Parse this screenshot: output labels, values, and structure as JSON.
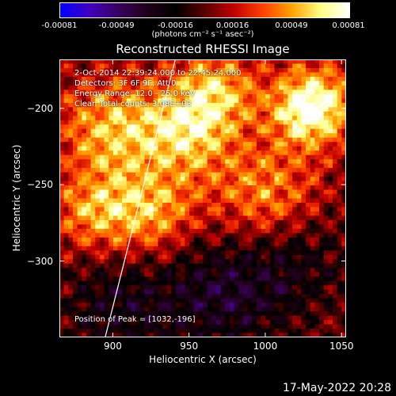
{
  "colorbar": {
    "ticks": [
      "-0.00081",
      "-0.00049",
      "-0.00016",
      "0.00016",
      "0.00049",
      "0.00081"
    ],
    "units": "(photons cm⁻² s⁻¹ asec⁻²)"
  },
  "annotations": {
    "time_range": "2-Oct-2014 22:39:24.000 to 22:45:24.000",
    "detectors": "Detectors: 3F 6F 9F, Att 0",
    "energy": "Energy Range: 12.0 - 25.0 keV",
    "clean": "Clean    Total counts: 3.08E+03",
    "peak": "Position of Peak = [1032,-196]"
  },
  "timestamp": "17-May-2022 20:28",
  "chart_data": {
    "type": "heatmap",
    "title": "Reconstructed RHESSI Image",
    "xlabel": "Heliocentric X (arcsec)",
    "ylabel": "Heliocentric Y (arcsec)",
    "xlim": [
      865,
      1053
    ],
    "ylim": [
      -350,
      -168
    ],
    "x_ticks": [
      "900",
      "950",
      "1000",
      "1050"
    ],
    "y_ticks": [
      "-200",
      "-250",
      "-300"
    ],
    "color_range": [
      -0.00081,
      0.00081
    ],
    "peak_position": [
      1032,
      -196
    ],
    "limb_line": [
      [
        895,
        -350
      ],
      [
        941,
        -168
      ]
    ],
    "colorscale": [
      "#0000ff",
      "#4000c0",
      "#3a0060",
      "#200018",
      "#000000",
      "#5a0000",
      "#c00000",
      "#ff4000",
      "#ffa000",
      "#ffff80",
      "#ffffff"
    ]
  }
}
